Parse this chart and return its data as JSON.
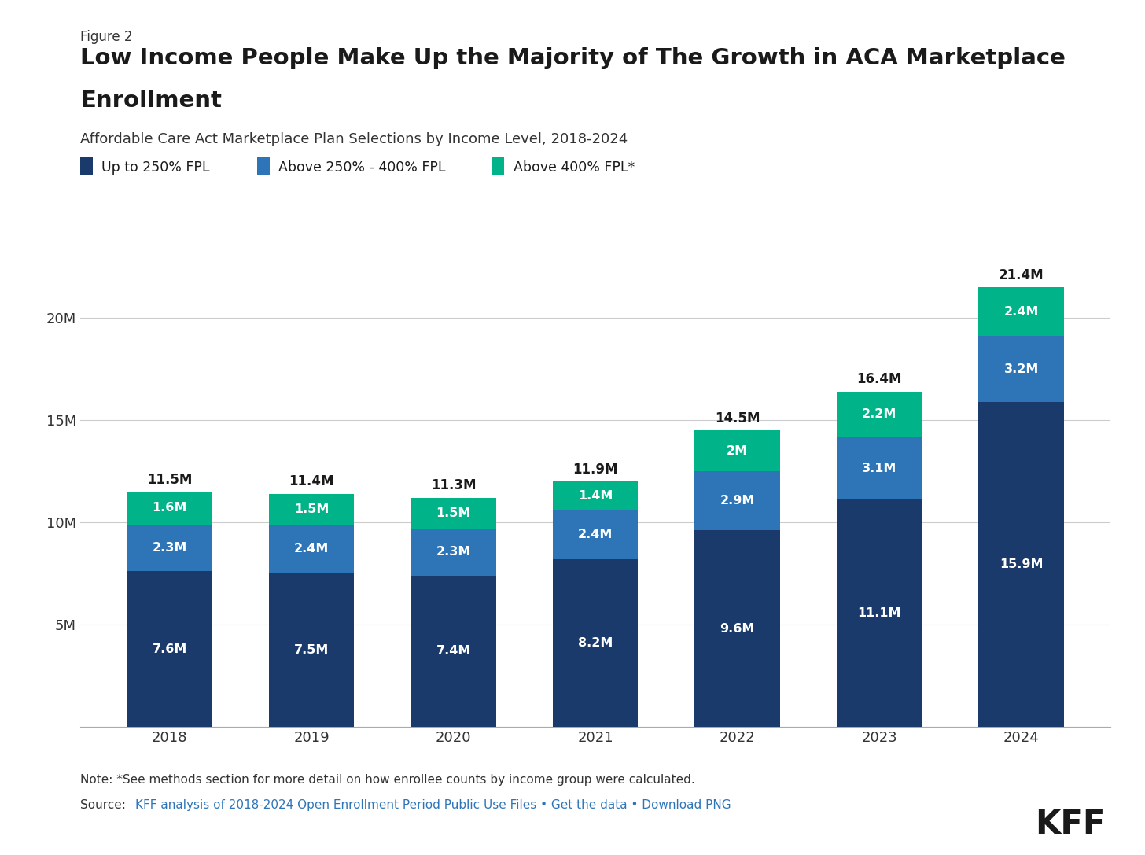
{
  "years": [
    "2018",
    "2019",
    "2020",
    "2021",
    "2022",
    "2023",
    "2024"
  ],
  "low_income": [
    7.6,
    7.5,
    7.4,
    8.2,
    9.6,
    11.1,
    15.9
  ],
  "mid_income": [
    2.3,
    2.4,
    2.3,
    2.4,
    2.9,
    3.1,
    3.2
  ],
  "high_income": [
    1.6,
    1.5,
    1.5,
    1.4,
    2.0,
    2.2,
    2.4
  ],
  "totals": [
    "11.5M",
    "11.4M",
    "11.3M",
    "11.9M",
    "14.5M",
    "16.4M",
    "21.4M"
  ],
  "low_labels": [
    "7.6M",
    "7.5M",
    "7.4M",
    "8.2M",
    "9.6M",
    "11.1M",
    "15.9M"
  ],
  "mid_labels": [
    "2.3M",
    "2.4M",
    "2.3M",
    "2.4M",
    "2.9M",
    "3.1M",
    "3.2M"
  ],
  "high_labels": [
    "1.6M",
    "1.5M",
    "1.5M",
    "1.4M",
    "2M",
    "2.2M",
    "2.4M"
  ],
  "color_low": "#1a3a6b",
  "color_mid": "#2e75b8",
  "color_high": "#00b388",
  "figure_label": "Figure 2",
  "title_line1": "Low Income People Make Up the Majority of The Growth in ACA Marketplace",
  "title_line2": "Enrollment",
  "subtitle": "Affordable Care Act Marketplace Plan Selections by Income Level, 2018-2024",
  "legend_labels": [
    "Up to 250% FPL",
    "Above 250% - 400% FPL",
    "Above 400% FPL*"
  ],
  "note": "Note: *See methods section for more detail on how enrollee counts by income group were calculated.",
  "source_prefix": "Source: ",
  "source_link": "KFF analysis of 2018-2024 Open Enrollment Period Public Use Files",
  "source_suffix": " • Get the data • Download PNG",
  "yticks": [
    0,
    5,
    10,
    15,
    20
  ],
  "ylim": [
    0,
    23
  ],
  "background_color": "#ffffff",
  "bar_width": 0.6
}
